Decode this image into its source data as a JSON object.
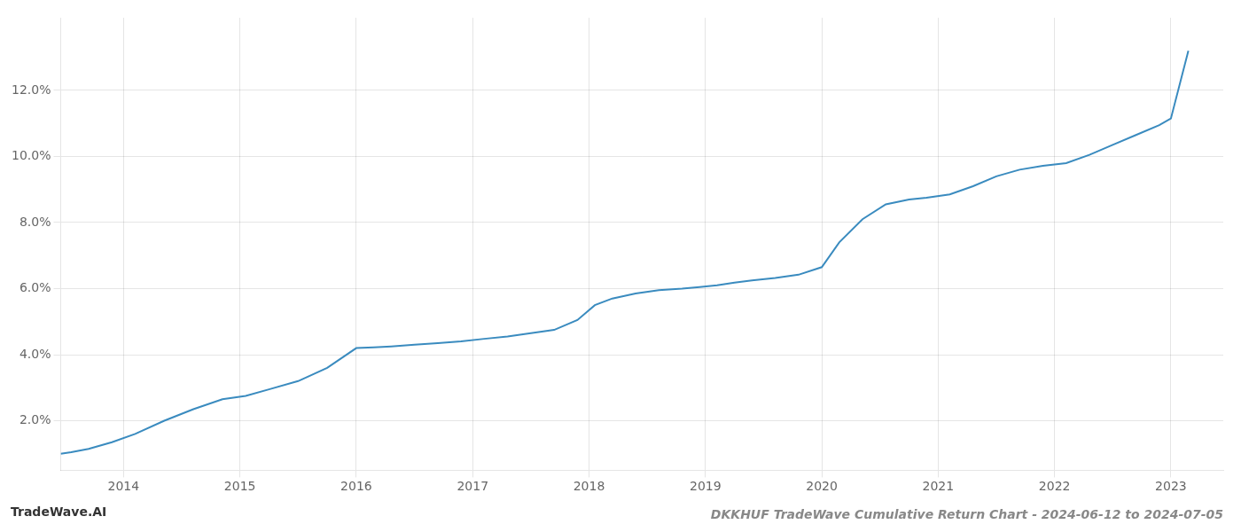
{
  "chart_data": {
    "type": "line",
    "title": "DKKHUF TradeWave Cumulative Return Chart - 2024-06-12 to 2024-07-05",
    "annotations": [
      "TradeWave.AI"
    ],
    "x": [
      2013.46,
      2013.55,
      2013.7,
      2013.9,
      2014.1,
      2014.35,
      2014.6,
      2014.85,
      2015.05,
      2015.25,
      2015.5,
      2015.75,
      2016.0,
      2016.15,
      2016.3,
      2016.5,
      2016.7,
      2016.9,
      2017.1,
      2017.3,
      2017.5,
      2017.7,
      2017.9,
      2018.05,
      2018.2,
      2018.4,
      2018.6,
      2018.8,
      2018.95,
      2019.1,
      2019.25,
      2019.4,
      2019.6,
      2019.8,
      2020.0,
      2020.15,
      2020.35,
      2020.55,
      2020.75,
      2020.9,
      2021.1,
      2021.3,
      2021.5,
      2021.7,
      2021.9,
      2022.1,
      2022.3,
      2022.5,
      2022.7,
      2022.9,
      2023.0,
      2023.15
    ],
    "values": [
      1.0,
      1.05,
      1.15,
      1.35,
      1.6,
      2.0,
      2.35,
      2.65,
      2.75,
      2.95,
      3.2,
      3.6,
      4.2,
      4.22,
      4.25,
      4.3,
      4.35,
      4.4,
      4.48,
      4.55,
      4.65,
      4.75,
      5.05,
      5.5,
      5.7,
      5.85,
      5.95,
      6.0,
      6.05,
      6.1,
      6.18,
      6.25,
      6.32,
      6.42,
      6.65,
      7.4,
      8.1,
      8.55,
      8.7,
      8.75,
      8.85,
      9.1,
      9.4,
      9.6,
      9.72,
      9.8,
      10.05,
      10.35,
      10.65,
      10.95,
      11.15,
      13.2
    ],
    "color": "#3a8bbf",
    "xlim": [
      2013.46,
      2023.45
    ],
    "xticks": [
      2014,
      2015,
      2016,
      2017,
      2018,
      2019,
      2020,
      2021,
      2022,
      2023
    ],
    "ylim": [
      0.5,
      14.2
    ],
    "yticks": [
      {
        "value": 2.0,
        "label": "2.0%"
      },
      {
        "value": 4.0,
        "label": "4.0%"
      },
      {
        "value": 6.0,
        "label": "6.0%"
      },
      {
        "value": 8.0,
        "label": "8.0%"
      },
      {
        "value": 10.0,
        "label": "10.0%"
      },
      {
        "value": 12.0,
        "label": "12.0%"
      }
    ],
    "grid": true
  }
}
